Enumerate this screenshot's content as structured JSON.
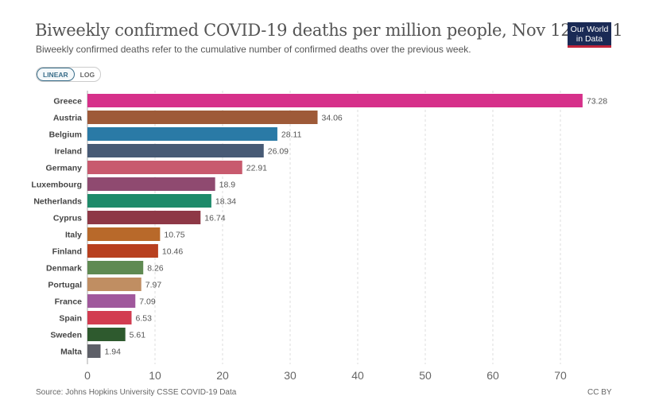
{
  "header": {
    "title": "Biweekly confirmed COVID-19 deaths per million people, Nov 12, 2021",
    "subtitle": "Biweekly confirmed deaths refer to the cumulative number of confirmed deaths over the previous week.",
    "logo_line1": "Our World",
    "logo_line2": "in Data"
  },
  "toggle": {
    "linear": "LINEAR",
    "log": "LOG",
    "selected": "LINEAR"
  },
  "footer": {
    "source": "Source: Johns Hopkins University CSSE COVID-19 Data",
    "license": "CC BY"
  },
  "chart_data": {
    "type": "bar",
    "orientation": "horizontal",
    "title": "Biweekly confirmed COVID-19 deaths per million people, Nov 12, 2021",
    "xlabel": "",
    "ylabel": "",
    "xlim": [
      0,
      73.28
    ],
    "xticks": [
      0,
      10,
      20,
      30,
      40,
      50,
      60,
      70
    ],
    "grid": true,
    "categories": [
      "Greece",
      "Austria",
      "Belgium",
      "Ireland",
      "Germany",
      "Luxembourg",
      "Netherlands",
      "Cyprus",
      "Italy",
      "Finland",
      "Denmark",
      "Portugal",
      "France",
      "Spain",
      "Sweden",
      "Malta"
    ],
    "values": [
      73.28,
      34.06,
      28.11,
      26.09,
      22.91,
      18.9,
      18.34,
      16.74,
      10.75,
      10.46,
      8.26,
      7.97,
      7.09,
      6.53,
      5.61,
      1.94
    ],
    "labels": [
      "73.28",
      "34.06",
      "28.11",
      "26.09",
      "22.91",
      "18.9",
      "18.34",
      "16.74",
      "10.75",
      "10.46",
      "8.26",
      "7.97",
      "7.09",
      "6.53",
      "5.61",
      "1.94"
    ],
    "colors": [
      "#d6308a",
      "#9e5a38",
      "#2a7aa6",
      "#475a75",
      "#c85a6e",
      "#8f4a70",
      "#1e8a6a",
      "#8e3846",
      "#b8692a",
      "#b8401f",
      "#5f8a52",
      "#c08e62",
      "#a0589c",
      "#d23c50",
      "#2e5a2e",
      "#5e6068"
    ]
  }
}
